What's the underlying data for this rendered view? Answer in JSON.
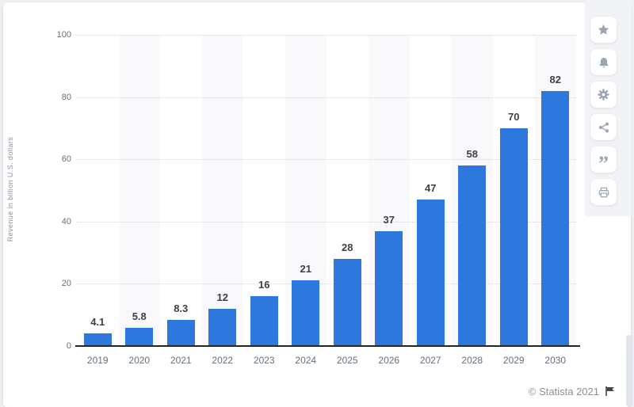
{
  "chart_data": {
    "type": "bar",
    "categories": [
      "2019",
      "2020",
      "2021",
      "2022",
      "2023",
      "2024",
      "2025",
      "2026",
      "2027",
      "2028",
      "2029",
      "2030"
    ],
    "values": [
      4.1,
      5.8,
      8.3,
      12,
      16,
      21,
      28,
      37,
      47,
      58,
      70,
      82
    ],
    "value_labels": [
      "4.1",
      "5.8",
      "8.3",
      "12",
      "16",
      "21",
      "28",
      "37",
      "47",
      "58",
      "70",
      "82"
    ],
    "title": "",
    "xlabel": "",
    "ylabel": "Revenue in billion U.S. dollars",
    "ylim": [
      0,
      100
    ],
    "yticks": [
      0,
      20,
      40,
      60,
      80,
      100
    ],
    "grid": "horizontal-dotted",
    "plot_bands": "alternating-vertical",
    "legend": "none",
    "bar_color": "#2d77dd"
  },
  "credit": {
    "text": "© Statista 2021"
  },
  "sidebar": {
    "buttons": [
      {
        "name": "favorite",
        "icon": "star-icon"
      },
      {
        "name": "alerts",
        "icon": "bell-icon"
      },
      {
        "name": "settings",
        "icon": "gear-icon"
      },
      {
        "name": "share",
        "icon": "share-icon"
      },
      {
        "name": "cite",
        "icon": "quote-icon"
      },
      {
        "name": "print",
        "icon": "printer-icon"
      }
    ]
  },
  "colors": {
    "bar": "#2d77dd",
    "axis": "#26262a",
    "tick_text": "#66707a",
    "value_text": "#3f4043",
    "band": "#f9f9fb",
    "icon": "#9aa5b4",
    "panel": "#f1f3f6",
    "background": "#eef0f3"
  }
}
